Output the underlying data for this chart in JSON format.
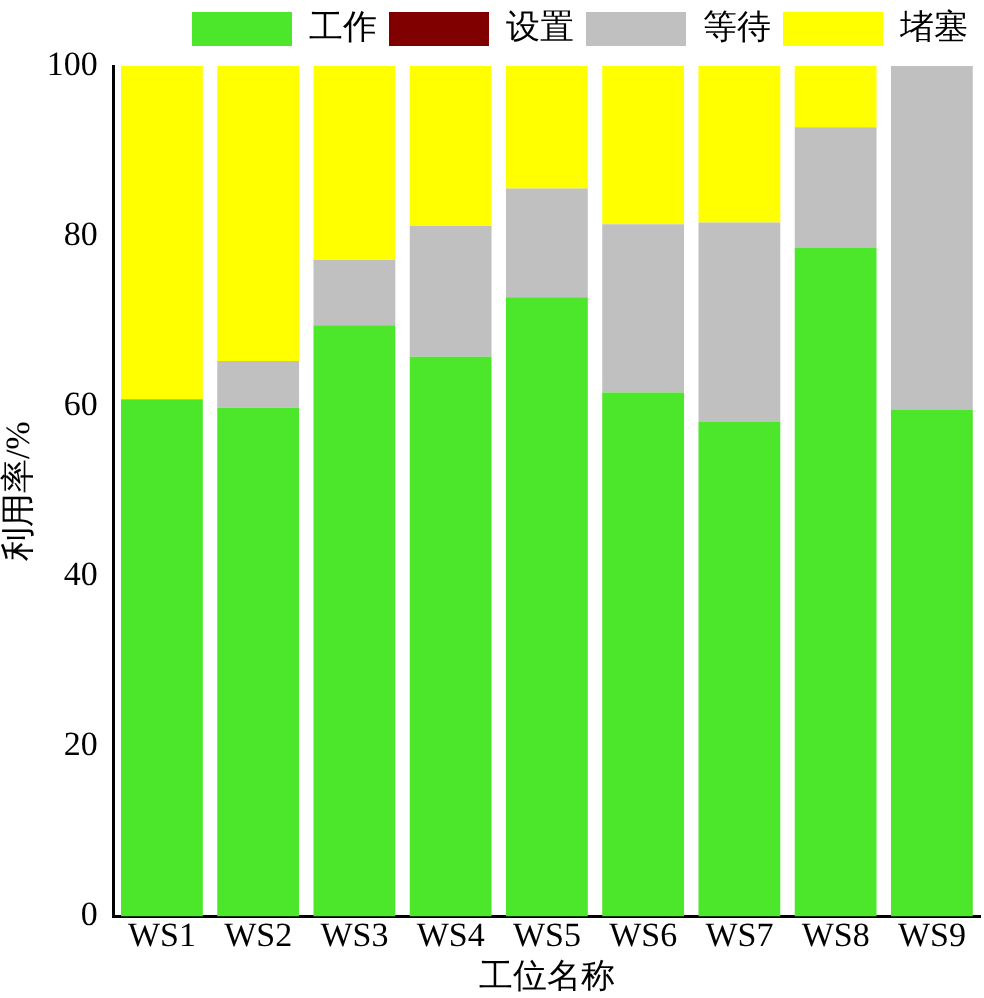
{
  "chart_data": {
    "type": "bar",
    "stacked": true,
    "xlabel": "工位名称",
    "ylabel": "利用率/%",
    "categories": [
      "WS1",
      "WS2",
      "WS3",
      "WS4",
      "WS5",
      "WS6",
      "WS7",
      "WS8",
      "WS9"
    ],
    "series": [
      {
        "name": "工作",
        "color": "#4ce62a",
        "values": [
          60.8,
          59.8,
          69.5,
          65.8,
          72.8,
          61.6,
          58.2,
          78.6,
          59.6
        ]
      },
      {
        "name": "设置",
        "color": "#800000",
        "values": [
          0,
          0,
          0,
          0,
          0,
          0,
          0,
          0,
          0
        ]
      },
      {
        "name": "等待",
        "color": "#c0c0c0",
        "values": [
          0,
          5.5,
          7.7,
          15.4,
          12.8,
          19.8,
          23.4,
          14.2,
          40.4
        ]
      },
      {
        "name": "堵塞",
        "color": "#ffff00",
        "values": [
          39.2,
          34.7,
          22.8,
          18.8,
          14.4,
          18.6,
          18.4,
          7.2,
          0
        ]
      }
    ],
    "ylim": [
      0,
      100
    ],
    "yticks": [
      0,
      20,
      40,
      60,
      80,
      100
    ],
    "grid": false,
    "legend": "top"
  }
}
